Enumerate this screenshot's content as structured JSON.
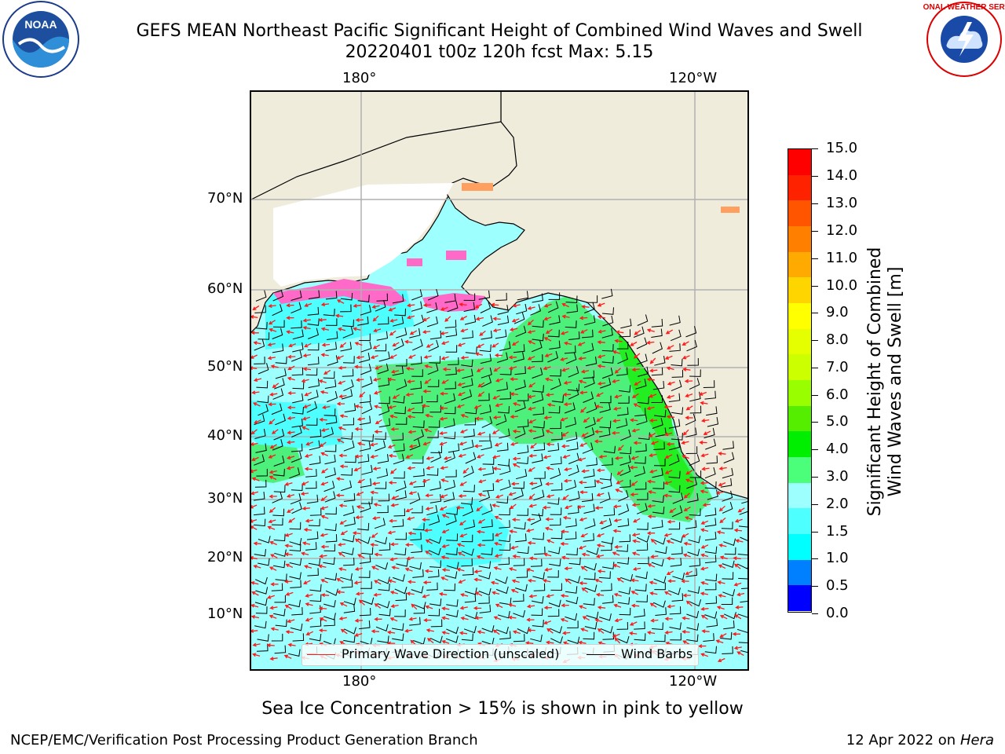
{
  "header": {
    "title_line1": "GEFS MEAN Northeast Pacific Significant Height of Combined Wind Waves and Swell",
    "title_line2": "20220401 t00z 120h fcst   Max: 5.15"
  },
  "logos": {
    "noara_text": "NOAA",
    "nws_ring_text": "NATIONAL WEATHER SERVICE"
  },
  "map": {
    "lon_labels_top": [
      "180°",
      "120°W"
    ],
    "lon_labels_bottom": [
      "180°",
      "120°W"
    ],
    "lat_labels": [
      "70°N",
      "60°N",
      "50°N",
      "40°N",
      "30°N",
      "20°N",
      "10°N"
    ],
    "legend": {
      "wave_dir": "Primary Wave Direction (unscaled)",
      "wind_barbs": "Wind Barbs"
    },
    "colors": {
      "land": "#efecdc",
      "ocean_low": "#9effff",
      "grid": "#b0b0b0",
      "arrow": "#ff1a1a"
    }
  },
  "colorbar": {
    "title_line1": "Significant Height of Combined",
    "title_line2": "Wind Waves and Swell [m]",
    "ticks": [
      "15.0",
      "14.0",
      "13.0",
      "12.0",
      "11.0",
      "10.0",
      "9.0",
      "8.0",
      "7.0",
      "6.0",
      "5.0",
      "4.0",
      "3.0",
      "2.0",
      "1.5",
      "1.0",
      "0.5",
      "0.0"
    ],
    "colors": [
      "#ff0000",
      "#ff2200",
      "#ff5500",
      "#ff8000",
      "#ffaa00",
      "#ffd500",
      "#ffff00",
      "#e6ff00",
      "#ccff00",
      "#99ff00",
      "#55ee00",
      "#00ee00",
      "#4cff7a",
      "#9effff",
      "#4dffff",
      "#00ffff",
      "#0080ff",
      "#0000ff"
    ]
  },
  "footer": {
    "sea_ice_note": "Sea Ice Concentration > 15% is shown in pink to yellow",
    "producer": "NCEP/EMC/Verification Post Processing Product Generation Branch",
    "date_prefix": "12 Apr 2022 on ",
    "host": "Hera"
  }
}
